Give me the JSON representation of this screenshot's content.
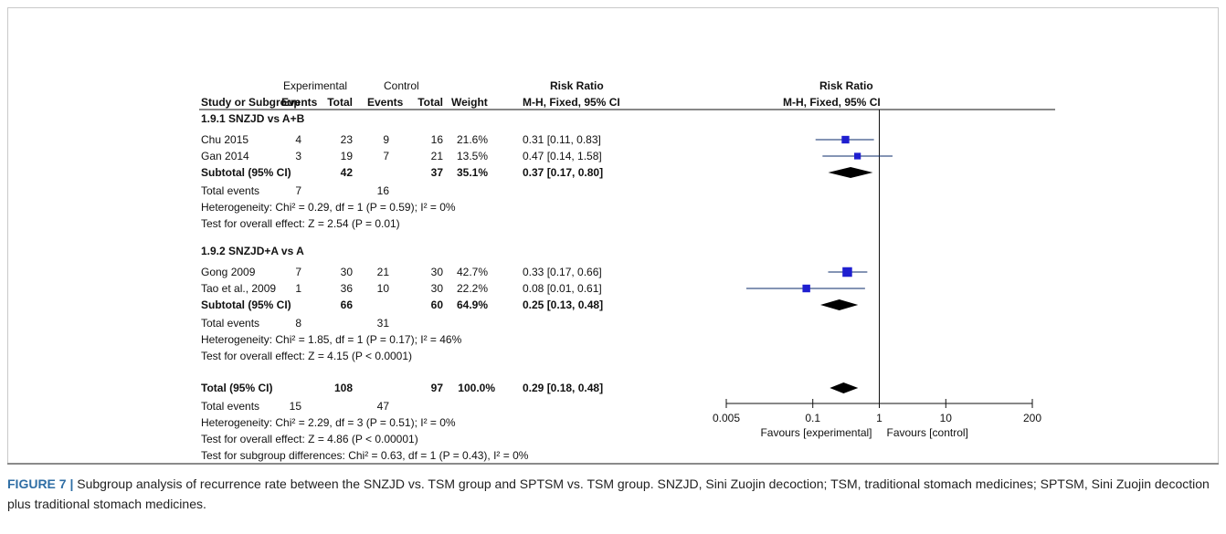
{
  "header": {
    "experimental": "Experimental",
    "control": "Control",
    "risk_ratio_table": "Risk Ratio",
    "risk_ratio_plot": "Risk Ratio",
    "col_study": "Study or Subgroup",
    "col_events_e": "Events",
    "col_total_e": "Total",
    "col_events_c": "Events",
    "col_total_c": "Total",
    "col_weight": "Weight",
    "col_method_table": "M-H, Fixed, 95% CI",
    "col_method_plot": "M-H, Fixed, 95% CI"
  },
  "subgroups": [
    {
      "title": "1.9.1 SNZJD vs A+B",
      "studies": [
        {
          "name": "Chu 2015",
          "e_events": "4",
          "e_total": "23",
          "c_events": "9",
          "c_total": "16",
          "weight": "21.6%",
          "ci": "0.31 [0.11, 0.83]"
        },
        {
          "name": "Gan 2014",
          "e_events": "3",
          "e_total": "19",
          "c_events": "7",
          "c_total": "21",
          "weight": "13.5%",
          "ci": "0.47 [0.14, 1.58]"
        }
      ],
      "subtotal": {
        "label": "Subtotal (95% CI)",
        "e_total": "42",
        "c_total": "37",
        "weight": "35.1%",
        "ci": "0.37 [0.17, 0.80]"
      },
      "total_events": {
        "label": "Total events",
        "e": "7",
        "c": "16"
      },
      "heterogeneity": "Heterogeneity: Chi² = 0.29, df = 1 (P = 0.59); I² = 0%",
      "overall": "Test for overall effect: Z = 2.54 (P = 0.01)"
    },
    {
      "title": "1.9.2 SNZJD+A vs A",
      "studies": [
        {
          "name": "Gong 2009",
          "e_events": "7",
          "e_total": "30",
          "c_events": "21",
          "c_total": "30",
          "weight": "42.7%",
          "ci": "0.33 [0.17, 0.66]"
        },
        {
          "name": "Tao et al., 2009",
          "e_events": "1",
          "e_total": "36",
          "c_events": "10",
          "c_total": "30",
          "weight": "22.2%",
          "ci": "0.08 [0.01, 0.61]"
        }
      ],
      "subtotal": {
        "label": "Subtotal (95% CI)",
        "e_total": "66",
        "c_total": "60",
        "weight": "64.9%",
        "ci": "0.25 [0.13, 0.48]"
      },
      "total_events": {
        "label": "Total events",
        "e": "8",
        "c": "31"
      },
      "heterogeneity": "Heterogeneity: Chi² = 1.85, df = 1 (P = 0.17); I² = 46%",
      "overall": "Test for overall effect: Z = 4.15 (P < 0.0001)"
    }
  ],
  "total": {
    "label": "Total (95% CI)",
    "e_total": "108",
    "c_total": "97",
    "weight": "100.0%",
    "ci": "0.29 [0.18, 0.48]",
    "total_events": {
      "label": "Total events",
      "e": "15",
      "c": "47"
    },
    "heterogeneity": "Heterogeneity: Chi² = 2.29, df = 3 (P = 0.51); I² = 0%",
    "overall": "Test for overall effect: Z = 4.86 (P < 0.00001)",
    "subgroup_diff": "Test for subgroup differences: Chi² = 0.63, df = 1 (P = 0.43), I² = 0%"
  },
  "chart_data": {
    "type": "forest",
    "scale": "log",
    "xlim": [
      0.005,
      200
    ],
    "ticks": [
      {
        "value": 0.005,
        "label": "0.005"
      },
      {
        "value": 0.1,
        "label": "0.1"
      },
      {
        "value": 1,
        "label": "1"
      },
      {
        "value": 10,
        "label": "10"
      },
      {
        "value": 200,
        "label": "200"
      }
    ],
    "favours_left": "Favours [experimental]",
    "favours_right": "Favours [control]",
    "studies": [
      {
        "name": "Chu 2015",
        "rr": 0.31,
        "lo": 0.11,
        "hi": 0.83,
        "weight": 21.6
      },
      {
        "name": "Gan 2014",
        "rr": 0.47,
        "lo": 0.14,
        "hi": 1.58,
        "weight": 13.5
      },
      {
        "name": "Gong 2009",
        "rr": 0.33,
        "lo": 0.17,
        "hi": 0.66,
        "weight": 42.7
      },
      {
        "name": "Tao et al., 2009",
        "rr": 0.08,
        "lo": 0.01,
        "hi": 0.61,
        "weight": 22.2
      }
    ],
    "summaries": [
      {
        "name": "Subtotal 1.9.1",
        "rr": 0.37,
        "lo": 0.17,
        "hi": 0.8
      },
      {
        "name": "Subtotal 1.9.2",
        "rr": 0.25,
        "lo": 0.13,
        "hi": 0.48
      },
      {
        "name": "Total",
        "rr": 0.29,
        "lo": 0.18,
        "hi": 0.48
      }
    ],
    "colors": {
      "square": "#1f1fd0",
      "line": "#0a2a6a",
      "diamond": "#000000"
    }
  },
  "caption": {
    "label": "FIGURE 7 |",
    "text": " Subgroup analysis of recurrence rate between the SNZJD vs. TSM group and SPTSM vs. TSM group. SNZJD, Sini Zuojin decoction; TSM, traditional stomach medicines; SPTSM, Sini Zuojin decoction plus traditional stomach medicines."
  }
}
